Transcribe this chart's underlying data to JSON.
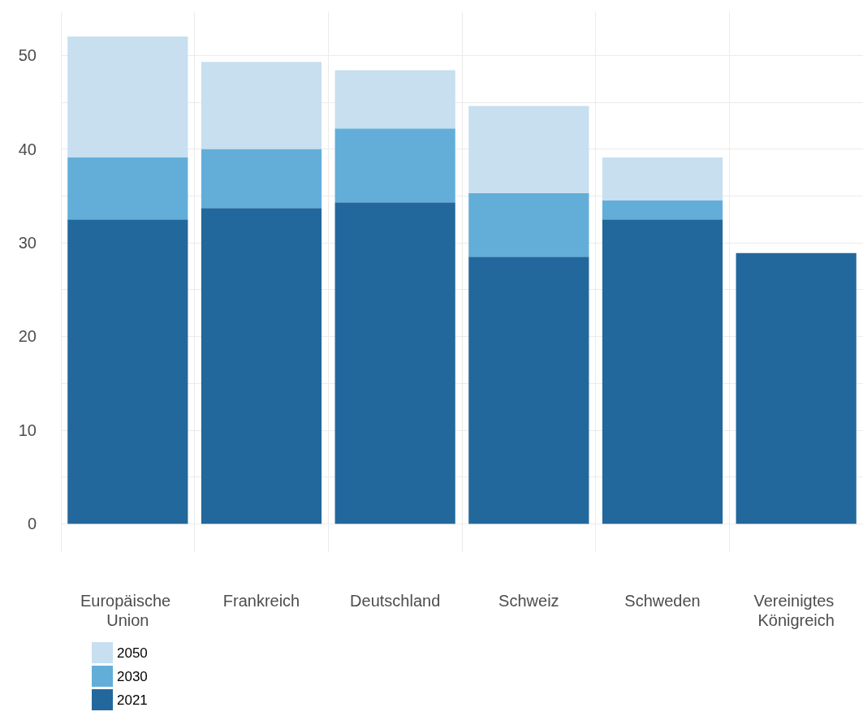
{
  "chart_data": {
    "type": "bar",
    "stacked": true,
    "categories": [
      "Europäische Union",
      "Frankreich",
      "Deutschland",
      "Schweiz",
      "Schweden",
      "Vereinigtes Königreich"
    ],
    "series": [
      {
        "name": "2021",
        "color": "#22689c",
        "values": [
          32.5,
          33.7,
          34.3,
          28.5,
          32.5,
          28.9
        ]
      },
      {
        "name": "2030",
        "color": "#62aed9",
        "values": [
          6.6,
          6.3,
          7.9,
          6.8,
          2.0,
          null
        ]
      },
      {
        "name": "2050",
        "color": "#c7dfef",
        "values": [
          12.9,
          9.3,
          6.2,
          9.3,
          4.6,
          null
        ]
      }
    ],
    "ylim": [
      -3,
      54.6
    ],
    "yticks": [
      0,
      {
        "value": 5,
        "label": null
      },
      10,
      {
        "value": 15,
        "label": null
      },
      20,
      {
        "value": 25,
        "label": null
      },
      30,
      {
        "value": 35,
        "label": null
      },
      40,
      {
        "value": 45,
        "label": null
      },
      50
    ],
    "grid": true,
    "legend": "bottom left"
  }
}
